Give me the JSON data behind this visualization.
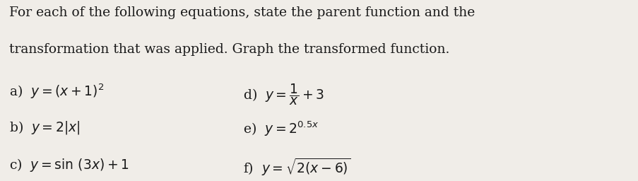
{
  "background_color": "#f0ede8",
  "title_line1": "For each of the following equations, state the parent function and the",
  "title_line2": "transformation that was applied. Graph the transformed function.",
  "font_size_title": 13.5,
  "font_size_body": 13.5,
  "text_color": "#1a1a1a",
  "label_a": "a)",
  "formula_a": "y = (x + 1)^2",
  "label_b": "b)",
  "formula_b": "y = 2|x|",
  "label_c": "c)",
  "formula_c": "y = sin (3x) + 1",
  "label_d": "d)",
  "label_e": "e)",
  "formula_e": "y = 2^{0.5x}",
  "label_f": "f)"
}
